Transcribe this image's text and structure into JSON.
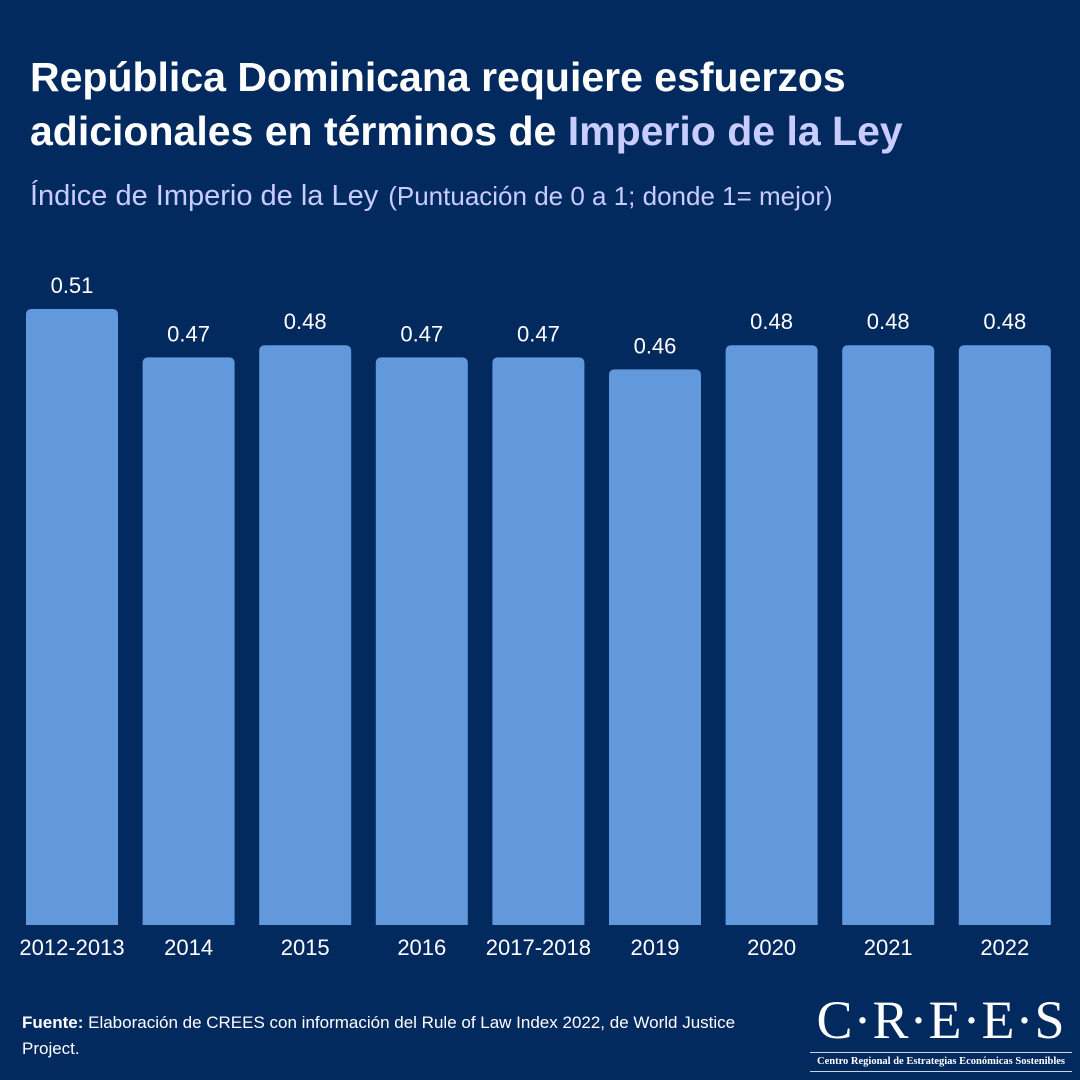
{
  "title": {
    "part1": "República Dominicana requiere esfuerzos adicionales en términos de ",
    "highlight": "Imperio de la Ley"
  },
  "subtitle": {
    "main": "Índice de Imperio de la Ley",
    "note": "(Puntuación de 0 a  1; donde 1= mejor)"
  },
  "colors": {
    "background": "#032a5f",
    "bar": "#6199dc",
    "highlight": "#c9ccff"
  },
  "chart_data": {
    "type": "bar",
    "title": "Índice de Imperio de la Ley",
    "categories": [
      "2012-2013",
      "2014",
      "2015",
      "2016",
      "2017-2018",
      "2019",
      "2020",
      "2021",
      "2022"
    ],
    "values": [
      0.51,
      0.47,
      0.48,
      0.47,
      0.47,
      0.46,
      0.48,
      0.48,
      0.48
    ],
    "labels": [
      "0.51",
      "0.47",
      "0.48",
      "0.47",
      "0.47",
      "0.46",
      "0.48",
      "0.48",
      "0.48"
    ],
    "ylim": [
      0,
      0.51
    ],
    "grid": false,
    "legend": "none"
  },
  "source": {
    "label": "Fuente:",
    "text": " Elaboración de CREES con información del Rule of Law Index 2022, de World Justice Project."
  },
  "logo": {
    "name": "C·R·E·E·S",
    "tagline": "Centro Regional de Estrategias Económicas Sostenibles"
  }
}
